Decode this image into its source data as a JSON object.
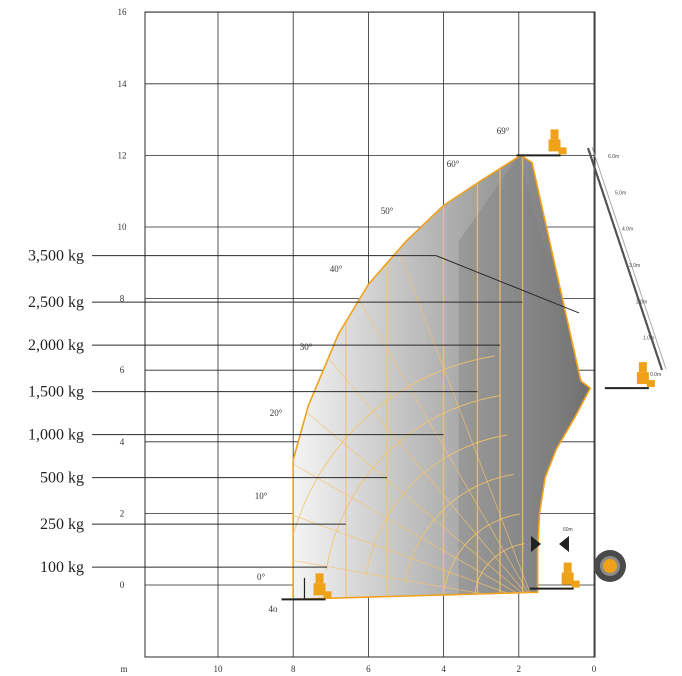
{
  "chart_data": {
    "type": "load-chart",
    "axes": {
      "x_unit": "m",
      "y_ticks": [
        "0",
        "2",
        "4",
        "6",
        "8",
        "10",
        "12",
        "14",
        "16"
      ],
      "x_ticks": [
        "10",
        "8",
        "6",
        "4",
        "2",
        "0"
      ],
      "xlim": [
        11.5,
        0
      ],
      "ylim": [
        -1.8,
        16
      ],
      "grid": true
    },
    "boom_angles": [
      "0°",
      "10°",
      "20°",
      "30°",
      "40°",
      "50°",
      "60°",
      "69°"
    ],
    "base_label": "4o",
    "extension_label": "60m",
    "extension_marks": [
      "6.0m",
      "5.0m",
      "4.0m",
      "3.0m",
      "2.0m",
      "1.0m",
      "0.0m"
    ],
    "load_zones": [
      {
        "label": "3,500 kg",
        "line_y": 9.2,
        "reach_x": 4.2
      },
      {
        "label": "2,500 kg",
        "line_y": 7.9,
        "reach_x": 1.9
      },
      {
        "label": "2,000 kg",
        "line_y": 6.7,
        "reach_x": 2.5
      },
      {
        "label": "1,500 kg",
        "line_y": 5.4,
        "reach_x": 3.1
      },
      {
        "label": "1,000 kg",
        "line_y": 4.2,
        "reach_x": 4.0
      },
      {
        "label": "500 kg",
        "line_y": 3.0,
        "reach_x": 5.5
      },
      {
        "label": "250 kg",
        "line_y": 1.7,
        "reach_x": 6.6
      },
      {
        "label": "100 kg",
        "line_y": 0.5,
        "reach_x": 7.1
      }
    ],
    "envelope_outline": [
      [
        8.0,
        -0.4
      ],
      [
        8.0,
        3.5
      ],
      [
        7.6,
        5.0
      ],
      [
        6.8,
        7.0
      ],
      [
        6.0,
        8.4
      ],
      [
        5.0,
        9.6
      ],
      [
        4.0,
        10.6
      ],
      [
        3.0,
        11.3
      ],
      [
        1.95,
        12.0
      ],
      [
        1.65,
        11.8
      ],
      [
        0.35,
        5.7
      ],
      [
        0.1,
        5.5
      ],
      [
        0.5,
        4.7
      ],
      [
        1.0,
        3.8
      ],
      [
        1.3,
        3.0
      ],
      [
        1.45,
        2.0
      ],
      [
        1.5,
        1.0
      ],
      [
        1.5,
        -0.2
      ]
    ],
    "colors": {
      "envelope_outline": "#f0a11a",
      "inner_arcs": "#f5c36a",
      "machine": "#f0a11a",
      "load_zone_fill": "#8e8e8e"
    }
  }
}
